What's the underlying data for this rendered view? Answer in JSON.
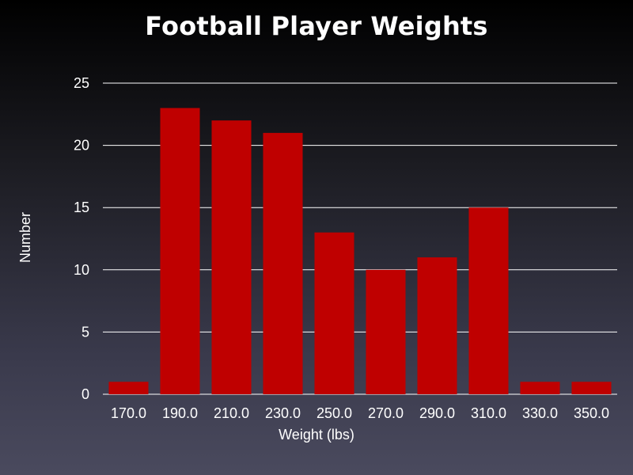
{
  "chart_data": {
    "type": "bar",
    "title": "Football Player Weights",
    "xlabel": "Weight (lbs)",
    "ylabel": "Number",
    "categories": [
      "170.0",
      "190.0",
      "210.0",
      "230.0",
      "250.0",
      "270.0",
      "290.0",
      "310.0",
      "330.0",
      "350.0"
    ],
    "values": [
      1,
      23,
      22,
      21,
      13,
      10,
      11,
      15,
      1,
      1
    ],
    "ylim": [
      0,
      25
    ],
    "yticks": [
      "0",
      "5",
      "10",
      "15",
      "20",
      "25"
    ],
    "grid": true,
    "colors": {
      "bar": "#bf0000",
      "grid": "#ffffff",
      "text": "#ffffff"
    }
  }
}
